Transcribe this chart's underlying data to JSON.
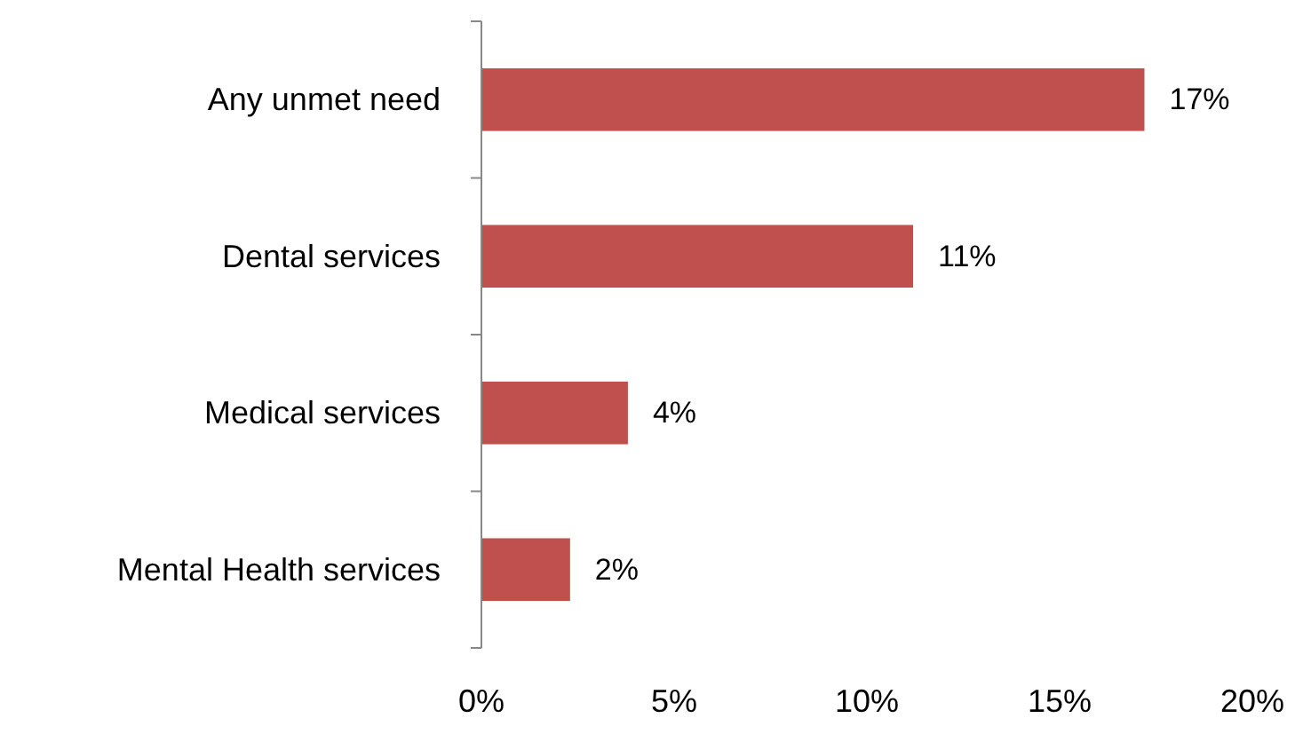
{
  "chart_data": {
    "type": "bar",
    "orientation": "horizontal",
    "categories": [
      "Any unmet  need",
      "Dental services",
      "Medical services",
      "Mental Health services"
    ],
    "values": [
      17.2,
      11.2,
      3.8,
      2.3
    ],
    "color": "#c0504d",
    "value_labels": [
      "17%",
      "11%",
      "4%",
      "2%"
    ],
    "xlim": [
      0,
      20
    ],
    "xticks": [
      {
        "value": 0,
        "label": "0%"
      },
      {
        "value": 5,
        "label": "5%"
      },
      {
        "value": 10,
        "label": "10%"
      },
      {
        "value": 15,
        "label": "15%"
      },
      {
        "value": 20,
        "label": "20%"
      }
    ]
  }
}
